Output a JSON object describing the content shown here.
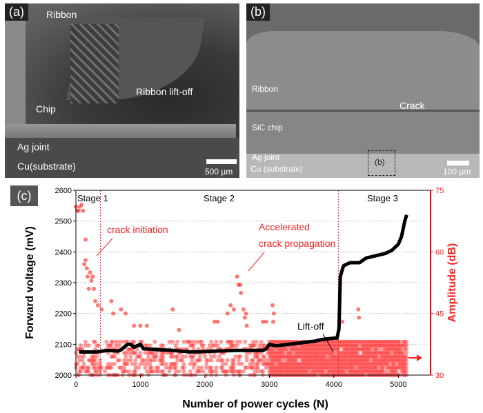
{
  "panel_a": {
    "tag": "(a)",
    "labels": [
      "Ribbon",
      "Ribbon lift-off",
      "Chip",
      "Ag joint",
      "Cu(substrate)"
    ],
    "scale": "500 µm"
  },
  "panel_b": {
    "tag": "(b)",
    "labels": [
      "Ribbon",
      "Crack",
      "SiC chip",
      "Ag joint",
      "Cu (substrate)",
      "(b)"
    ],
    "scale": "100 µm"
  },
  "panel_c": {
    "tag": "(c)"
  },
  "chart_data": {
    "type": "scatter",
    "title": "",
    "xlabel": "Number of power cycles (N)",
    "ylabel": "Forward voltage (mV)",
    "y2label": "Amplitude (dB)",
    "xlim": [
      0,
      5500
    ],
    "ylim": [
      2000,
      2600
    ],
    "y2lim": [
      30,
      75
    ],
    "xticks": [
      "0",
      "1000",
      "2000",
      "3000",
      "4000",
      "5000"
    ],
    "yticks": [
      "2000",
      "2100",
      "2200",
      "2300",
      "2400",
      "2500",
      "2600"
    ],
    "y2ticks": [
      "30",
      "45",
      "60",
      "75"
    ],
    "grid": "horizontal dotted",
    "stages": [
      "Stage 1",
      "Stage 2",
      "Stage 3"
    ],
    "stage_boundaries": [
      380,
      4070
    ],
    "annotations": [
      "crack initiation",
      "Accelerated",
      "crack propagation",
      "Lift-off"
    ],
    "colors": {
      "voltage": "#000000",
      "amplitude": "#ff2020",
      "axis2": "#ff0000"
    },
    "series": [
      {
        "name": "Forward voltage",
        "axis": "left",
        "type": "line",
        "x": [
          50,
          300,
          500,
          650,
          700,
          800,
          850,
          900,
          950,
          1000,
          1050,
          1100,
          1300,
          1500,
          1800,
          2200,
          2500,
          2900,
          2950,
          3000,
          3100,
          3300,
          3500,
          3700,
          3800,
          4000,
          4050,
          4080,
          4100,
          4150,
          4250,
          4400,
          4500,
          4600,
          4700,
          4800,
          4900,
          5000,
          5050,
          5100,
          5130
        ],
        "y": [
          2075,
          2075,
          2080,
          2078,
          2082,
          2100,
          2100,
          2090,
          2095,
          2100,
          2085,
          2085,
          2082,
          2080,
          2075,
          2078,
          2080,
          2080,
          2085,
          2100,
          2095,
          2100,
          2105,
          2110,
          2115,
          2120,
          2120,
          2150,
          2320,
          2355,
          2365,
          2365,
          2380,
          2385,
          2390,
          2395,
          2405,
          2425,
          2450,
          2500,
          2520
        ]
      },
      {
        "name": "Amplitude",
        "axis": "right",
        "type": "scatter",
        "peaks_x": [
          0,
          20,
          40,
          60,
          90,
          110,
          130,
          150,
          150,
          170,
          180,
          200,
          220,
          240,
          260,
          280,
          300,
          340,
          400,
          550,
          580,
          700,
          770,
          900,
          1000,
          1100,
          1500,
          1600,
          2150,
          2200,
          2350,
          2400,
          2450,
          2500,
          2520,
          2550,
          2560,
          2600,
          2620,
          2640,
          2650,
          2900,
          2950,
          3050,
          3070,
          3060,
          4130,
          4380,
          4390
        ],
        "peaks_y": [
          71,
          70,
          70,
          71,
          71.5,
          70,
          57,
          63,
          58,
          56,
          54,
          51,
          55,
          53,
          54,
          51,
          48,
          47,
          46,
          48,
          45,
          46,
          45,
          42,
          42,
          42,
          46,
          41,
          43,
          43,
          45,
          47,
          46,
          54,
          52,
          52,
          50,
          46,
          44,
          45,
          42,
          43,
          43,
          47,
          45,
          43,
          43,
          46,
          44
        ],
        "dense_band": {
          "x_range": [
            0,
            5130
          ],
          "amplitude_range": [
            30,
            38.5
          ],
          "density_before_3000": 0.35,
          "density_after_3000": 0.95
        }
      }
    ]
  }
}
